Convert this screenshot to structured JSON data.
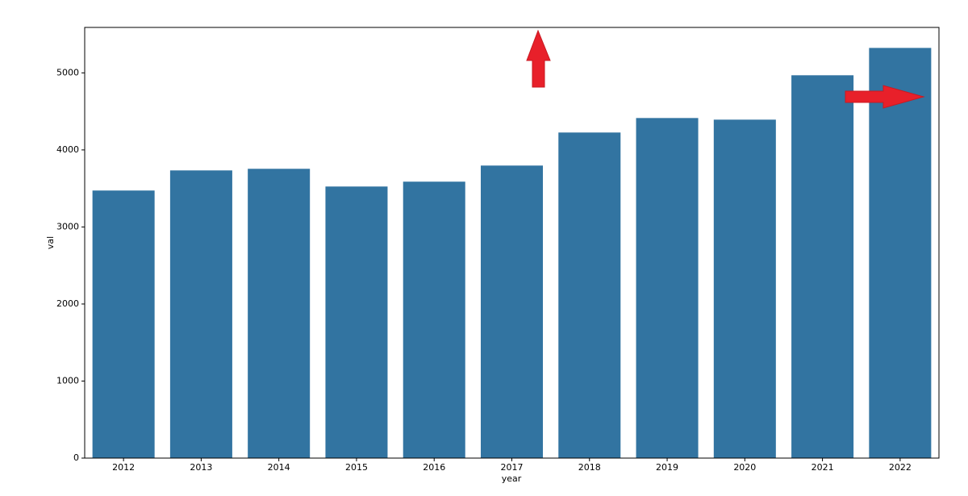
{
  "chart_data": {
    "type": "bar",
    "categories": [
      "2012",
      "2013",
      "2014",
      "2015",
      "2016",
      "2017",
      "2018",
      "2019",
      "2020",
      "2021",
      "2022"
    ],
    "values": [
      3473,
      3734,
      3755,
      3525,
      3588,
      3797,
      4226,
      4414,
      4393,
      4969,
      5324
    ],
    "color": "#3274a1",
    "x_label": "year",
    "y_label": "val",
    "ylim": [
      0,
      5590
    ],
    "yticks": [
      0,
      1000,
      2000,
      3000,
      4000,
      5000
    ]
  }
}
